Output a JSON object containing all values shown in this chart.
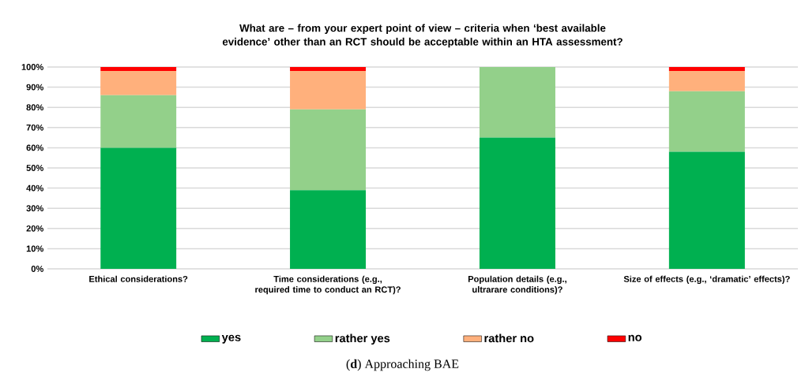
{
  "chart_data": {
    "type": "bar",
    "stacked": true,
    "title": "What are – from your expert point of view – criteria when ‘best available evidence’ other than an RCT should be acceptable within an HTA assessment?",
    "categories": [
      "Ethical considerations?",
      "Time considerations (e.g., required time to conduct an RCT)?",
      "Population details (e.g., ultrarare conditions)?",
      "Size of effects (e.g., ‘dramatic’ effects)?"
    ],
    "series": [
      {
        "name": "yes",
        "color": "#00b050",
        "values": [
          60,
          39,
          65,
          58
        ]
      },
      {
        "name": "rather yes",
        "color": "#93d08a",
        "values": [
          26,
          40,
          35,
          30
        ]
      },
      {
        "name": "rather no",
        "color": "#ffb07c",
        "values": [
          12,
          19,
          0,
          10
        ]
      },
      {
        "name": "no",
        "color": "#ff0000",
        "values": [
          2,
          2,
          0,
          2
        ]
      }
    ],
    "ylim": [
      0,
      100
    ],
    "yticks": [
      {
        "value": 0,
        "label": "0%"
      },
      {
        "value": 10,
        "label": "10%"
      },
      {
        "value": 20,
        "label": "20%"
      },
      {
        "value": 30,
        "label": "30%"
      },
      {
        "value": 40,
        "label": "40%"
      },
      {
        "value": 50,
        "label": "50%"
      },
      {
        "value": 60,
        "label": "60%"
      },
      {
        "value": 70,
        "label": "70%"
      },
      {
        "value": 80,
        "label": "80%"
      },
      {
        "value": 90,
        "label": "90%"
      },
      {
        "value": 100,
        "label": "100%"
      }
    ],
    "grid": "y",
    "legend": "bottom",
    "annotations": [
      "(**d**) Approaching BAE"
    ]
  }
}
